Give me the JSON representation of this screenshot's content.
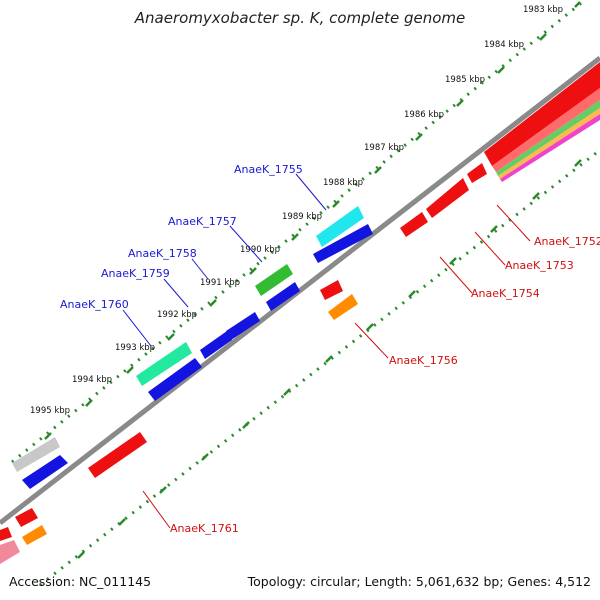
{
  "title": "Anaeromyxobacter sp. K, complete genome",
  "accession": "Accession: NC_011145",
  "summary": "Topology: circular; Length: 5,061,632 bp; Genes: 4,512",
  "kbp_ticks": [
    "1983 kbp",
    "1984 kbp",
    "1985 kbp",
    "1986 kbp",
    "1987 kbp",
    "1988 kbp",
    "1989 kbp",
    "1990 kbp",
    "1991 kbp",
    "1992 kbp",
    "1993 kbp",
    "1994 kbp",
    "1995 kbp"
  ],
  "plus_labels": [
    "AnaeK_1755",
    "AnaeK_1757",
    "AnaeK_1758",
    "AnaeK_1759",
    "AnaeK_1760"
  ],
  "minus_labels": [
    "AnaeK_1752",
    "AnaeK_1753",
    "AnaeK_1754",
    "AnaeK_1756",
    "AnaeK_1761"
  ],
  "colors": {
    "backbone": "#8a8a8a",
    "dots": "#2a8a2a",
    "plus_label": "#1a1ad0",
    "minus_label": "#d01010",
    "blue": "#1414e0",
    "red": "#ee1010",
    "cyan": "#22e6ee",
    "teal": "#22e8a0",
    "green": "#33bb33",
    "grey": "#c8c8c8",
    "orange": "#ff8c00",
    "pink": "#f08a9a"
  }
}
